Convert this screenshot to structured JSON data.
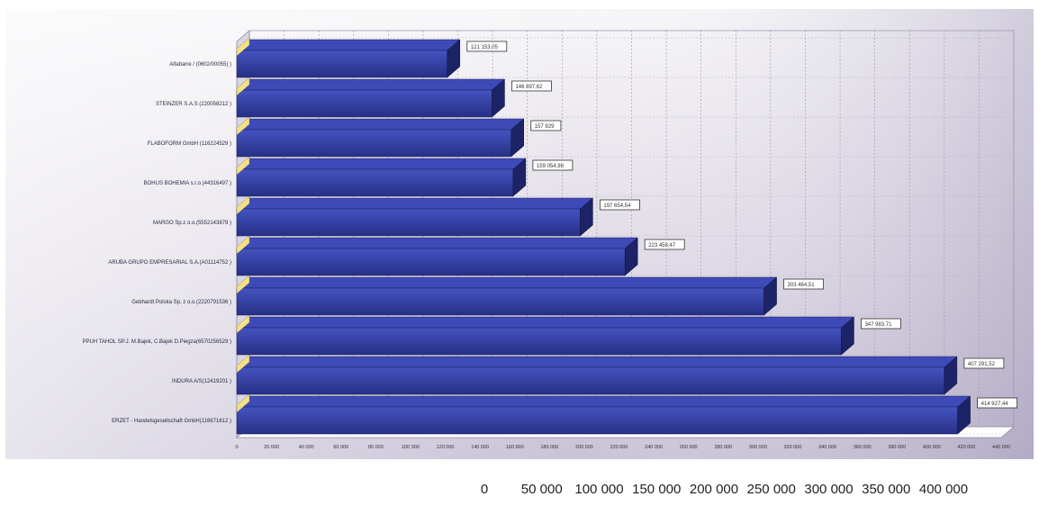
{
  "chart_data": {
    "type": "bar",
    "orientation": "horizontal",
    "categories": [
      "Alfabarre / (0602/00055) )",
      "STEINZER S.A.S (220058212 )",
      "FLABOFORM GmbH (116224529 )",
      "BOHUS BOHEMIA s.r.o.(44316497 )",
      "MARGO Sp.z o.o.(5552143879 )",
      "ARUBA GRUPO EMPRESARIAL S.A.(A01114752 )",
      "Gebhardt Polska Sp. z o.o.(2220791536 )",
      "PPUH TAHOL SP.J. M.Bajek, C.Bajek D.Piegza(6570256529 )",
      "INDURA A/S(12419201 )",
      "ERZET - Handelsgesellschaft GmbH(116671612 )"
    ],
    "values": [
      121153.05,
      146897.62,
      157929,
      159054.98,
      197654.54,
      223458.47,
      303464.51,
      347983.71,
      407291.52,
      414927.44
    ],
    "value_labels": [
      "121 153,05",
      "146 897,62",
      "157 929",
      "159 054,98",
      "197 654,54",
      "223 458,47",
      "303 464,51",
      "347 983,71",
      "407 291,52",
      "414 927,44"
    ],
    "xlim": [
      0,
      440000
    ],
    "x_ticks": [
      0,
      20000,
      40000,
      60000,
      80000,
      100000,
      120000,
      140000,
      160000,
      180000,
      200000,
      220000,
      240000,
      260000,
      280000,
      300000,
      320000,
      340000,
      360000,
      380000,
      400000,
      420000,
      440000
    ],
    "x_tick_labels": [
      "0",
      "20 000",
      "40 000",
      "60 000",
      "80 000",
      "100 000",
      "120 000",
      "140 000",
      "160 000",
      "180 000",
      "200 000",
      "220 000",
      "240 000",
      "260 000",
      "280 000",
      "300 000",
      "320 000",
      "340 000",
      "360 000",
      "380 000",
      "400 000",
      "420 000",
      "440 000"
    ],
    "secondary_axis": {
      "ticks": [
        0,
        50000,
        100000,
        150000,
        200000,
        250000,
        300000,
        350000,
        400000
      ],
      "tick_labels": [
        "0",
        "50 000",
        "100 000",
        "150 000",
        "200 000",
        "250 000",
        "300 000",
        "350 000",
        "400 000"
      ]
    },
    "grid": true,
    "style": "3d",
    "title": "",
    "xlabel": "",
    "ylabel": ""
  },
  "colors": {
    "bar_front": "#2f3a9a",
    "bar_top": "#3e4ab8",
    "bar_side": "#1c2366",
    "accent_marker": "#f3e08a",
    "background_top": "#f4f4f6",
    "background_bottom": "#a9a6c4"
  }
}
